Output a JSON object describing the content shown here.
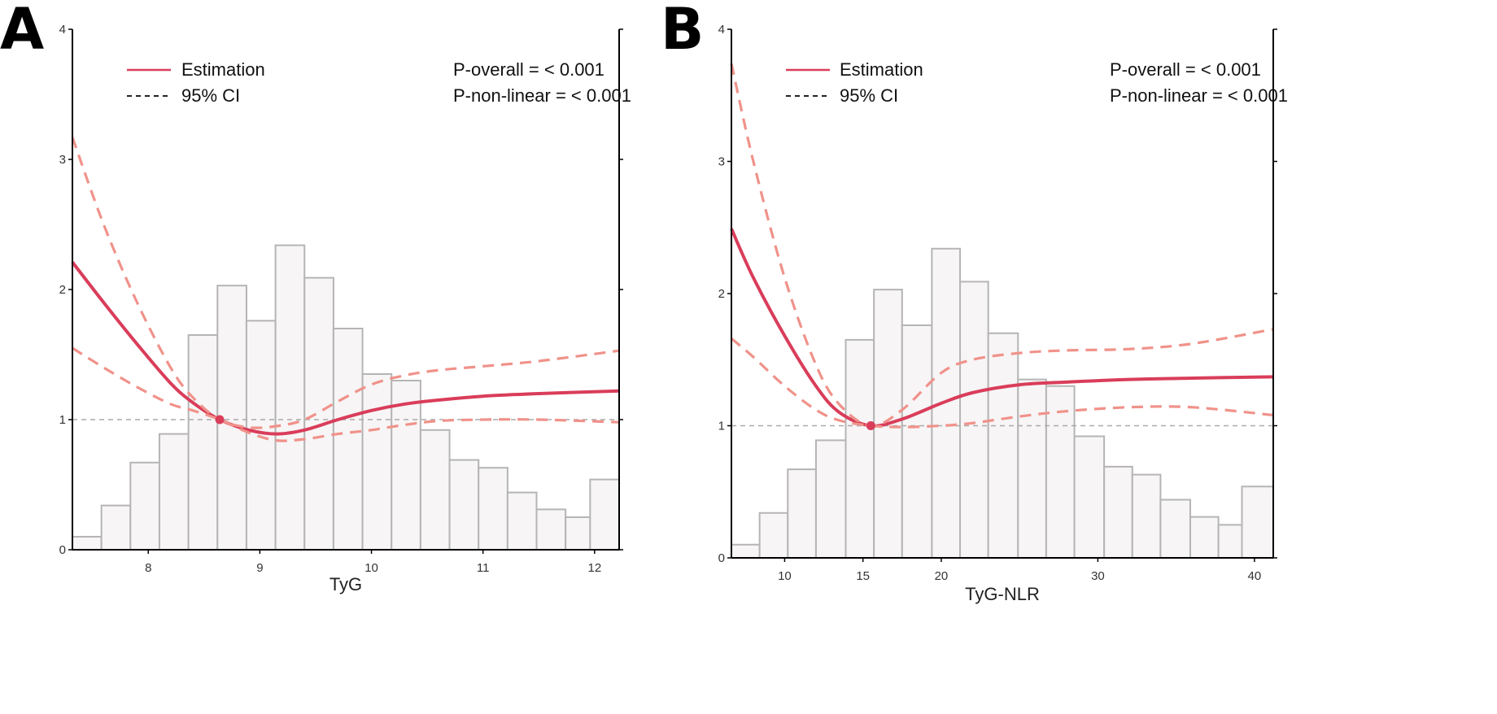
{
  "colors": {
    "estimate": "#D93D5A",
    "ci": "#F0928A",
    "bar_fill": "#F7F5F6",
    "bar_stroke": "#B5B5B5",
    "reference": "#AAAAAA",
    "axis": "#000000"
  },
  "chart_data": [
    {
      "panel": "A",
      "type": "line",
      "subtype": "restricted cubic spline with histogram",
      "xlabel": "TyG",
      "ylabel": "",
      "xlim": [
        7.32,
        12.22
      ],
      "ylim": [
        0,
        4
      ],
      "x_ticks": [
        8,
        9,
        10,
        11,
        12
      ],
      "x_tick_labels": [
        "8",
        "9",
        "10",
        "11",
        "12"
      ],
      "y_ticks": [
        0,
        1,
        2,
        3,
        4
      ],
      "y_tick_labels": [
        "0",
        "1",
        "2",
        "3",
        "4"
      ],
      "reference_line": 1,
      "reference_point": {
        "x": 8.64,
        "y": 1
      },
      "legend": {
        "estimate_label": "Estimation",
        "ci_label": "95% CI",
        "position": "top-left"
      },
      "stats": {
        "p_overall": "P-overall = < 0.001",
        "p_nonlinear": "P-non-linear = < 0.001"
      },
      "histogram": {
        "bin_edges": [
          7.32,
          7.58,
          7.84,
          8.1,
          8.36,
          8.62,
          8.88,
          9.14,
          9.4,
          9.66,
          9.92,
          10.18,
          10.44,
          10.7,
          10.96,
          11.22,
          11.48,
          11.74,
          11.96,
          12.22
        ],
        "heights": [
          0.1,
          0.34,
          0.67,
          0.89,
          1.65,
          2.03,
          1.76,
          2.34,
          2.09,
          1.7,
          1.35,
          1.3,
          0.92,
          0.69,
          0.63,
          0.44,
          0.31,
          0.25,
          0.54
        ]
      },
      "series": [
        {
          "name": "Estimation",
          "x": [
            7.32,
            7.6,
            7.9,
            8.2,
            8.4,
            8.64,
            8.9,
            9.15,
            9.4,
            9.7,
            10.0,
            10.3,
            10.6,
            11.0,
            11.5,
            12.22
          ],
          "y": [
            2.21,
            1.9,
            1.58,
            1.28,
            1.13,
            1.0,
            0.92,
            0.89,
            0.92,
            1.0,
            1.07,
            1.12,
            1.15,
            1.18,
            1.2,
            1.22
          ]
        },
        {
          "name": "95% CI upper",
          "x": [
            7.32,
            7.6,
            7.9,
            8.2,
            8.4,
            8.64,
            8.9,
            9.15,
            9.4,
            9.7,
            10.0,
            10.3,
            10.6,
            11.0,
            11.5,
            12.22
          ],
          "y": [
            3.17,
            2.5,
            1.9,
            1.4,
            1.17,
            1.0,
            0.94,
            0.95,
            1.0,
            1.14,
            1.27,
            1.34,
            1.38,
            1.41,
            1.45,
            1.53
          ]
        },
        {
          "name": "95% CI lower",
          "x": [
            7.32,
            7.6,
            7.9,
            8.2,
            8.4,
            8.64,
            8.9,
            9.15,
            9.4,
            9.7,
            10.0,
            10.3,
            10.6,
            11.0,
            11.5,
            12.22
          ],
          "y": [
            1.55,
            1.4,
            1.25,
            1.12,
            1.07,
            1.0,
            0.9,
            0.84,
            0.85,
            0.89,
            0.92,
            0.96,
            0.99,
            1.0,
            1.0,
            0.98
          ]
        }
      ]
    },
    {
      "panel": "B",
      "type": "line",
      "subtype": "restricted cubic spline with histogram",
      "xlabel": "TyG-NLR",
      "ylabel": "",
      "xlim": [
        6.6,
        41.2
      ],
      "ylim": [
        0,
        4
      ],
      "x_ticks": [
        10,
        15,
        20,
        30,
        40
      ],
      "x_tick_labels": [
        "10",
        "15",
        "20",
        "30",
        "40"
      ],
      "y_ticks": [
        0,
        1,
        2,
        3,
        4
      ],
      "y_tick_labels": [
        "0",
        "1",
        "2",
        "3",
        "4"
      ],
      "reference_line": 1,
      "reference_point": {
        "x": 15.5,
        "y": 1
      },
      "legend": {
        "estimate_label": "Estimation",
        "ci_label": "95% CI",
        "position": "top-left"
      },
      "stats": {
        "p_overall": "P-overall = < 0.001",
        "p_nonlinear": "P-non-linear = < 0.001"
      },
      "histogram": {
        "bin_edges": [
          6.6,
          8.4,
          10.2,
          12.0,
          13.9,
          15.7,
          17.5,
          19.4,
          21.2,
          23.0,
          24.9,
          26.7,
          28.5,
          30.4,
          32.2,
          34.0,
          35.9,
          37.7,
          39.2,
          41.2
        ],
        "heights": [
          0.1,
          0.34,
          0.67,
          0.89,
          1.65,
          2.03,
          1.76,
          2.34,
          2.09,
          1.7,
          1.35,
          1.3,
          0.92,
          0.69,
          0.63,
          0.44,
          0.31,
          0.25,
          0.54
        ]
      },
      "series": [
        {
          "name": "Estimation",
          "x": [
            6.6,
            8,
            10,
            12,
            13.5,
            15.5,
            17.5,
            20,
            22,
            25,
            28,
            32,
            36,
            41.2
          ],
          "y": [
            2.49,
            2.12,
            1.68,
            1.3,
            1.1,
            1.0,
            1.05,
            1.17,
            1.25,
            1.31,
            1.33,
            1.35,
            1.36,
            1.37
          ]
        },
        {
          "name": "95% CI upper",
          "x": [
            6.6,
            8,
            10,
            12,
            13.5,
            15.5,
            17.5,
            20,
            22,
            25,
            28,
            32,
            36,
            41.2
          ],
          "y": [
            3.74,
            3.0,
            2.12,
            1.46,
            1.16,
            1.0,
            1.12,
            1.4,
            1.5,
            1.55,
            1.57,
            1.58,
            1.62,
            1.73
          ]
        },
        {
          "name": "95% CI lower",
          "x": [
            6.6,
            8,
            10,
            12,
            13.5,
            15.5,
            17.5,
            20,
            22,
            25,
            28,
            32,
            36,
            41.2
          ],
          "y": [
            1.66,
            1.52,
            1.3,
            1.12,
            1.04,
            1.0,
            0.99,
            1.0,
            1.02,
            1.07,
            1.11,
            1.14,
            1.14,
            1.08
          ]
        }
      ]
    }
  ],
  "panels": [
    {
      "letter": "A"
    },
    {
      "letter": "B"
    }
  ]
}
